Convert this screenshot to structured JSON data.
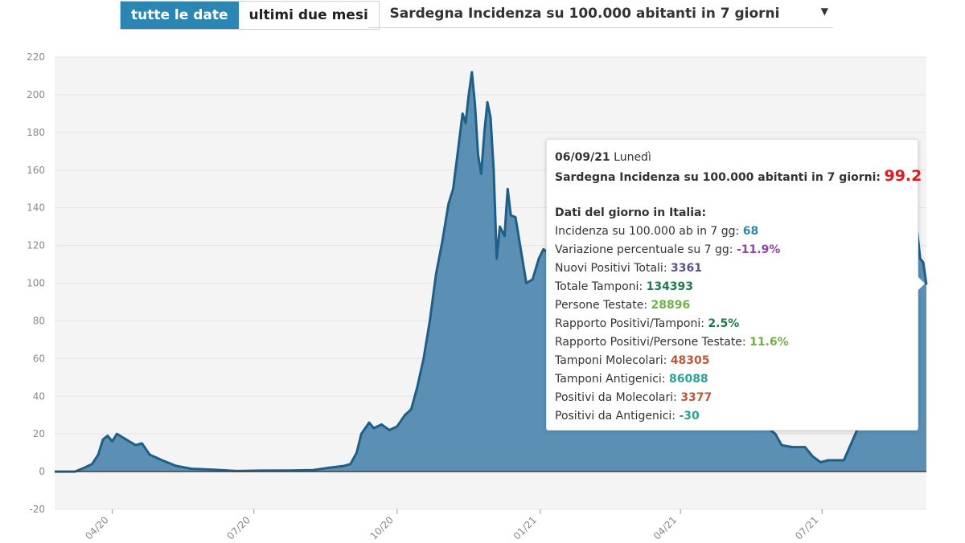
{
  "controls": {
    "all_dates": "tutte le date",
    "last_two_months": "ultimi due mesi",
    "selected_metric": "Sardegna Incidenza su 100.000 abitanti in 7 giorni"
  },
  "tooltip": {
    "date": "06/09/21",
    "weekday": "Lunedì",
    "headline_label": "Sardegna Incidenza su 100.000 abitanti in 7 giorni:",
    "headline_value": "99.2",
    "section_title": "Dati del giorno in Italia:",
    "rows": [
      {
        "label": "Incidenza su 100.000 ab in 7 gg:",
        "value": "68",
        "color": "#2b86b4"
      },
      {
        "label": "Variazione percentuale su 7 gg:",
        "value": "-11.9%",
        "color": "#8e44ad"
      },
      {
        "label": "Nuovi Positivi Totali:",
        "value": "3361",
        "color": "#5b4e8a"
      },
      {
        "label": "Totale Tamponi:",
        "value": "134393",
        "color": "#1e7a4d"
      },
      {
        "label": "Persone Testate:",
        "value": "28896",
        "color": "#6fb04a"
      },
      {
        "label": "Rapporto Positivi/Tamponi:",
        "value": "2.5%",
        "color": "#1e7a4d"
      },
      {
        "label": "Rapporto Positivi/Persone Testate:",
        "value": "11.6%",
        "color": "#6fb04a"
      },
      {
        "label": "Tamponi Molecolari:",
        "value": "48305",
        "color": "#c0573a"
      },
      {
        "label": "Tamponi Antigenici:",
        "value": "86088",
        "color": "#2aa198"
      },
      {
        "label": "Positivi da Molecolari:",
        "value": "3377",
        "color": "#c0573a"
      },
      {
        "label": "Positivi da Antigenici:",
        "value": "-30",
        "color": "#2aa198"
      }
    ]
  },
  "chart_data": {
    "type": "area",
    "ylim": [
      -20,
      220
    ],
    "yticks": [
      -20,
      0,
      20,
      40,
      60,
      80,
      100,
      120,
      140,
      160,
      180,
      200,
      220
    ],
    "xlim": [
      "2020-02-24",
      "2021-09-06"
    ],
    "xticks": [
      {
        "date": "2020-04-01",
        "label": "04/20"
      },
      {
        "date": "2020-07-01",
        "label": "07/20"
      },
      {
        "date": "2020-10-01",
        "label": "10/20"
      },
      {
        "date": "2021-01-01",
        "label": "01/21"
      },
      {
        "date": "2021-04-01",
        "label": "04/21"
      },
      {
        "date": "2021-07-01",
        "label": "07/21"
      }
    ],
    "grid": true,
    "colors": {
      "line": "#1f5f87",
      "fill": "#5b90b4",
      "plot_bg": "#f4f4f4"
    },
    "series": [
      {
        "points": [
          [
            "2020-02-24",
            0
          ],
          [
            "2020-03-08",
            0
          ],
          [
            "2020-03-14",
            2
          ],
          [
            "2020-03-19",
            4
          ],
          [
            "2020-03-23",
            9
          ],
          [
            "2020-03-26",
            17
          ],
          [
            "2020-03-29",
            19
          ],
          [
            "2020-04-01",
            16
          ],
          [
            "2020-04-04",
            20
          ],
          [
            "2020-04-08",
            18
          ],
          [
            "2020-04-12",
            16
          ],
          [
            "2020-04-16",
            14
          ],
          [
            "2020-04-20",
            15
          ],
          [
            "2020-04-25",
            9
          ],
          [
            "2020-05-03",
            6
          ],
          [
            "2020-05-12",
            3
          ],
          [
            "2020-05-22",
            1.5
          ],
          [
            "2020-06-05",
            1
          ],
          [
            "2020-06-20",
            0.3
          ],
          [
            "2020-07-05",
            0.5
          ],
          [
            "2020-07-25",
            0.6
          ],
          [
            "2020-08-08",
            0.8
          ],
          [
            "2020-08-18",
            2
          ],
          [
            "2020-08-28",
            3
          ],
          [
            "2020-09-01",
            4
          ],
          [
            "2020-09-05",
            10
          ],
          [
            "2020-09-08",
            20
          ],
          [
            "2020-09-13",
            26
          ],
          [
            "2020-09-16",
            23
          ],
          [
            "2020-09-21",
            25
          ],
          [
            "2020-09-26",
            22
          ],
          [
            "2020-10-01",
            24
          ],
          [
            "2020-10-06",
            30
          ],
          [
            "2020-10-10",
            33
          ],
          [
            "2020-10-14",
            45
          ],
          [
            "2020-10-18",
            60
          ],
          [
            "2020-10-22",
            80
          ],
          [
            "2020-10-26",
            105
          ],
          [
            "2020-10-30",
            122
          ],
          [
            "2020-11-03",
            142
          ],
          [
            "2020-11-06",
            150
          ],
          [
            "2020-11-09",
            170
          ],
          [
            "2020-11-12",
            190
          ],
          [
            "2020-11-14",
            185
          ],
          [
            "2020-11-16",
            200
          ],
          [
            "2020-11-18",
            212
          ],
          [
            "2020-11-20",
            195
          ],
          [
            "2020-11-22",
            168
          ],
          [
            "2020-11-24",
            158
          ],
          [
            "2020-11-26",
            180
          ],
          [
            "2020-11-28",
            196
          ],
          [
            "2020-11-30",
            188
          ],
          [
            "2020-12-02",
            160
          ],
          [
            "2020-12-04",
            113
          ],
          [
            "2020-12-06",
            130
          ],
          [
            "2020-12-09",
            125
          ],
          [
            "2020-12-11",
            150
          ],
          [
            "2020-12-13",
            136
          ],
          [
            "2020-12-16",
            135
          ],
          [
            "2020-12-19",
            120
          ],
          [
            "2020-12-23",
            100
          ],
          [
            "2020-12-27",
            102
          ],
          [
            "2020-12-31",
            113
          ],
          [
            "2021-01-03",
            118
          ],
          [
            "2021-06-01",
            20
          ],
          [
            "2021-06-05",
            14
          ],
          [
            "2021-06-12",
            13
          ],
          [
            "2021-06-20",
            13
          ],
          [
            "2021-06-25",
            8
          ],
          [
            "2021-06-30",
            5
          ],
          [
            "2021-07-05",
            6
          ],
          [
            "2021-07-15",
            6
          ],
          [
            "2021-07-25",
            25
          ],
          [
            "2021-08-03",
            60
          ],
          [
            "2021-08-20",
            100
          ],
          [
            "2021-08-27",
            130
          ],
          [
            "2021-08-31",
            128
          ],
          [
            "2021-09-02",
            113
          ],
          [
            "2021-09-04",
            111
          ],
          [
            "2021-09-06",
            99.2
          ]
        ]
      }
    ]
  }
}
